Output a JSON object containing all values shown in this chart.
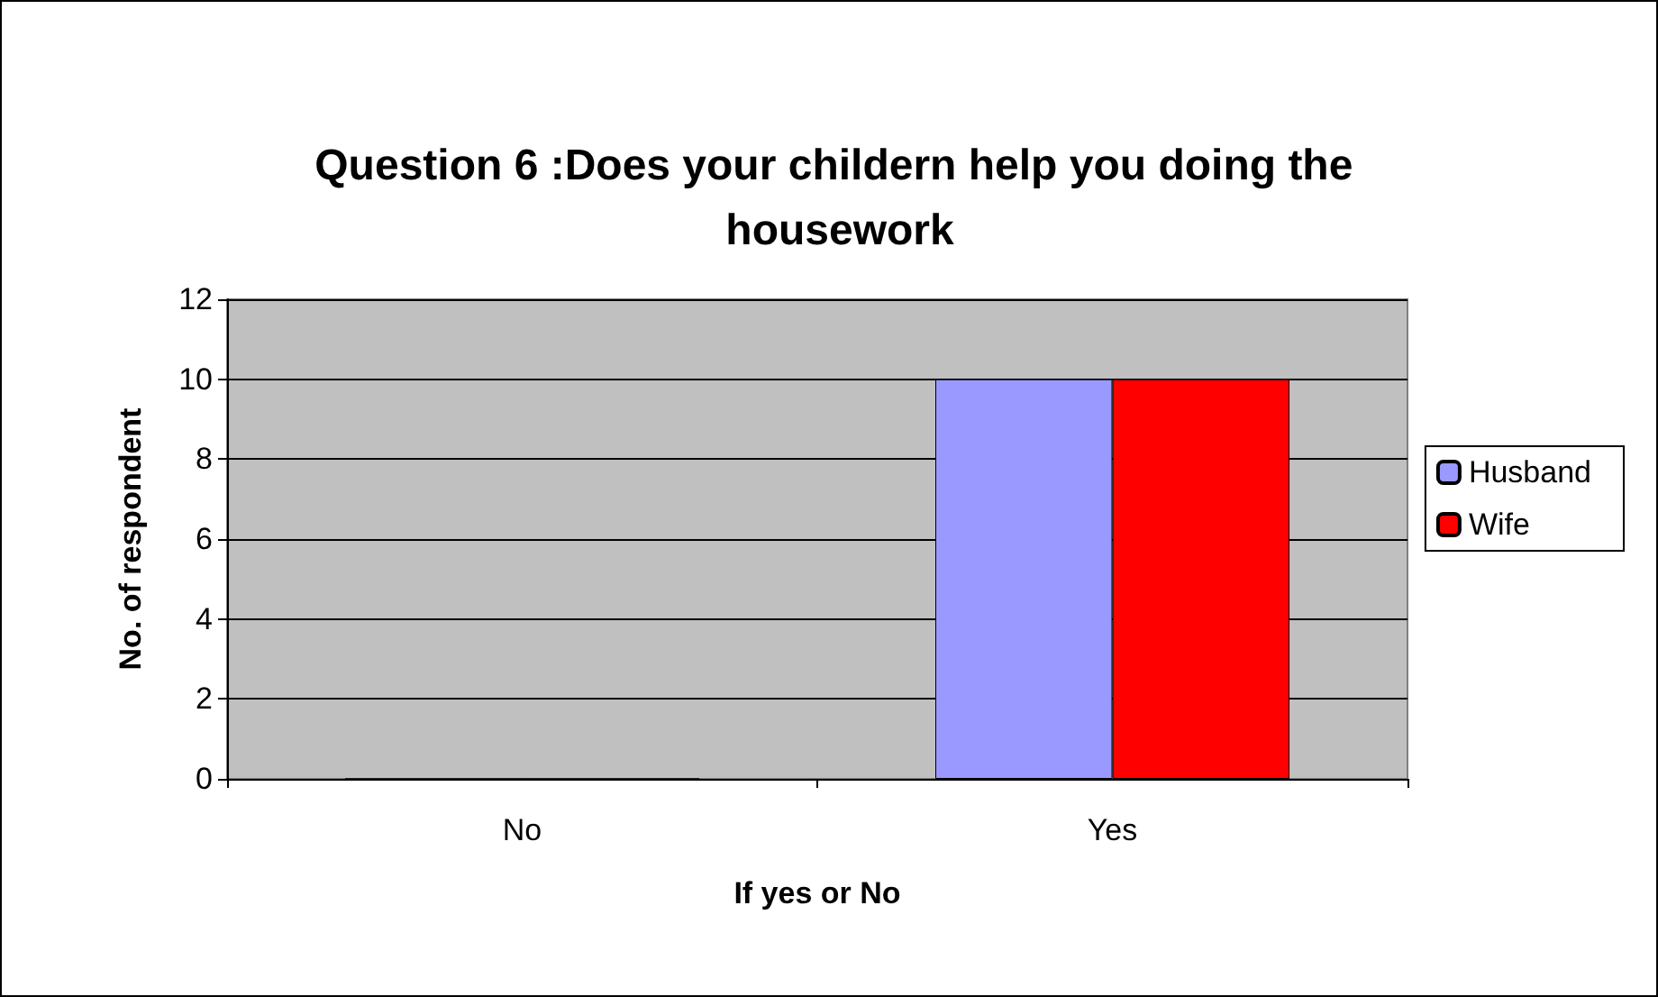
{
  "chart_data": {
    "type": "bar",
    "title": "Question 6 :Does your childern help you doing the housework",
    "xlabel": "If yes or No",
    "ylabel": "No. of respondent",
    "categories": [
      "No",
      "Yes"
    ],
    "series": [
      {
        "name": "Husband",
        "color": "#9999ff",
        "values": [
          0,
          10
        ]
      },
      {
        "name": "Wife",
        "color": "#ff0000",
        "values": [
          0,
          10
        ]
      }
    ],
    "ylim": [
      0,
      12
    ],
    "yticks": [
      0,
      2,
      4,
      6,
      8,
      10,
      12
    ],
    "grid": "y",
    "legend": "right"
  }
}
